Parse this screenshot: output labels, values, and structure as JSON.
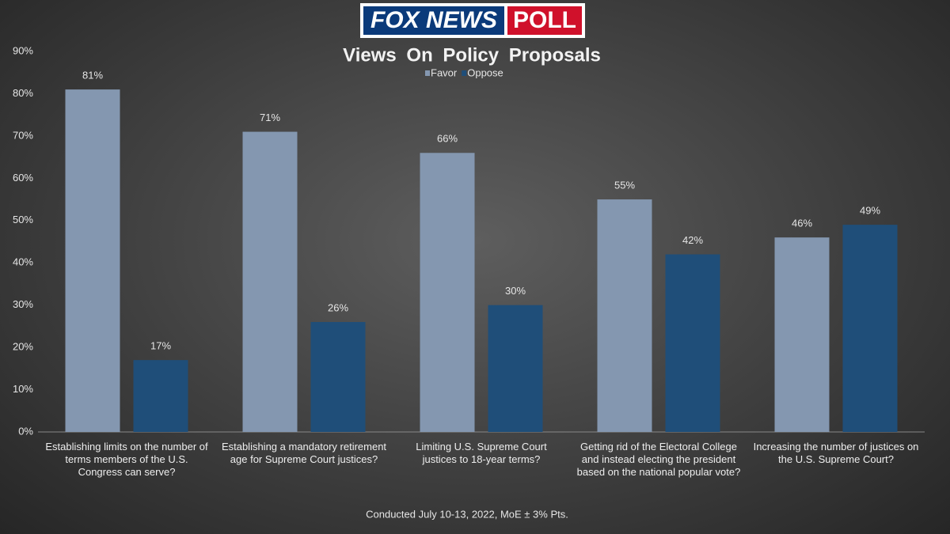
{
  "logo": {
    "brand": "FOX NEWS",
    "badge": "POLL"
  },
  "chart_data": {
    "type": "bar",
    "title": "Views On Policy Proposals",
    "footnote": "Conducted July 10-13, 2022, MoE ± 3% Pts.",
    "categories": [
      "Establishing limits on the number of terms members of the U.S. Congress can serve?",
      "Establishing a mandatory retirement age for Supreme Court justices?",
      "Limiting U.S. Supreme Court justices to 18-year terms?",
      "Getting rid of the Electoral College and instead electing the president based on the national popular vote?",
      "Increasing the number of justices on the U.S. Supreme Court?"
    ],
    "series": [
      {
        "name": "Favor",
        "color": "#8497b0",
        "values": [
          81,
          71,
          66,
          55,
          46
        ],
        "value_labels": [
          "81%",
          "71%",
          "66%",
          "55%",
          "46%"
        ]
      },
      {
        "name": "Oppose",
        "color": "#1f4e79",
        "values": [
          17,
          26,
          30,
          42,
          49
        ],
        "value_labels": [
          "17%",
          "26%",
          "30%",
          "42%",
          "49%"
        ]
      }
    ],
    "ylim": [
      0,
      90
    ],
    "yticks": [
      {
        "value": 0,
        "label": "0%"
      },
      {
        "value": 10,
        "label": "10%"
      },
      {
        "value": 20,
        "label": "20%"
      },
      {
        "value": 30,
        "label": "30%"
      },
      {
        "value": 40,
        "label": "40%"
      },
      {
        "value": 50,
        "label": "50%"
      },
      {
        "value": 60,
        "label": "60%"
      },
      {
        "value": 70,
        "label": "70%"
      },
      {
        "value": 80,
        "label": "80%"
      },
      {
        "value": 90,
        "label": "90%"
      }
    ],
    "grid": false,
    "legend": "top"
  }
}
